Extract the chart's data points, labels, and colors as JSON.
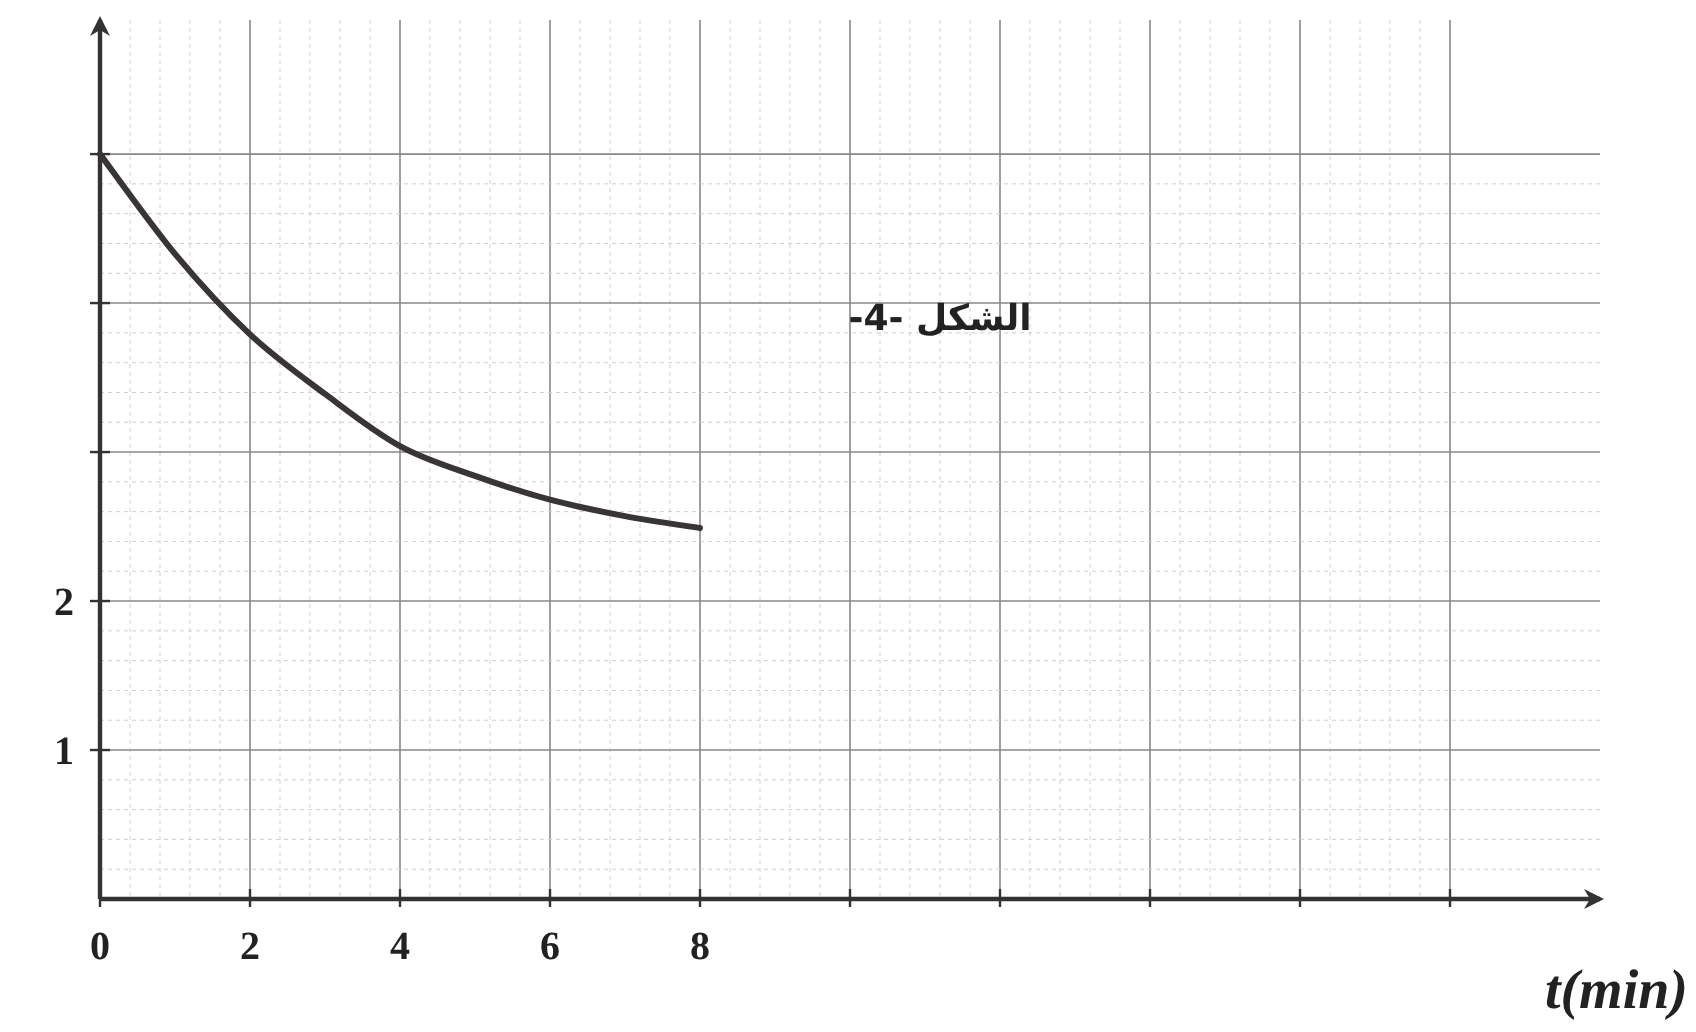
{
  "chart_data": {
    "type": "line",
    "xlabel": "t(min)",
    "x": [
      0,
      1,
      2,
      3,
      4,
      5,
      6,
      7,
      8
    ],
    "series": [
      {
        "color": "#3a3535",
        "values": [
          5.0,
          4.33,
          3.79,
          3.39,
          3.04,
          2.84,
          2.68,
          2.57,
          2.49
        ]
      }
    ],
    "xlim": [
      0,
      20
    ],
    "xticks": [
      0,
      2,
      4,
      6,
      8,
      {
        "value": 10,
        "label": null
      },
      {
        "value": 12,
        "label": null
      },
      {
        "value": 14,
        "label": null
      },
      {
        "value": 16,
        "label": null
      },
      {
        "value": 18,
        "label": null
      }
    ],
    "ylim": [
      0,
      5.9
    ],
    "yticks": [
      1,
      2,
      {
        "value": 3,
        "label": null
      },
      {
        "value": 4,
        "label": null
      },
      {
        "value": 5,
        "label": null
      }
    ],
    "grid": true,
    "marker": "none",
    "line_style": "solid",
    "annotations": [
      "الشكل -4-"
    ]
  }
}
